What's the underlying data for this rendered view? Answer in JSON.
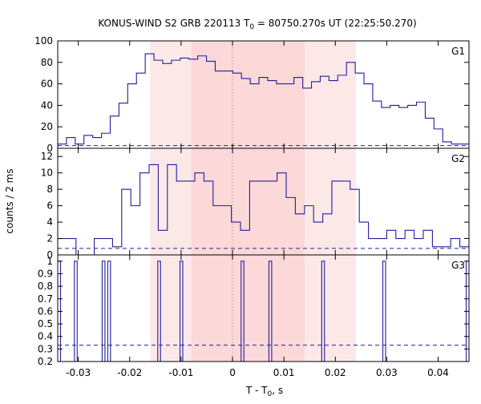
{
  "chart_data": {
    "type": "line",
    "style": "histogram-step",
    "title": "KONUS-WIND S2 GRB 220113 T",
    "title_sub": "0",
    "title_rest": " = 80750.270s UT (22:25:50.270)",
    "xlabel": "T - T",
    "xlabel_sub": "0",
    "xlabel_rest": ", s",
    "ylabel": "counts / 2 ms",
    "xlim": [
      -0.034,
      0.046
    ],
    "xticks": [
      -0.03,
      -0.02,
      -0.01,
      0,
      0.01,
      0.02,
      0.03,
      0.04
    ],
    "xtick_labels": [
      "-0.03",
      "-0.02",
      "-0.01",
      "0",
      "0.01",
      "0.02",
      "0.03",
      "0.04"
    ],
    "bin_width": 0.002,
    "bin_start": -0.034,
    "zero_line": 0,
    "shaded_regions": [
      {
        "from": -0.016,
        "to": 0.024,
        "color": "#fde8e8"
      },
      {
        "from": -0.008,
        "to": 0.014,
        "color": "#fcd8d8"
      }
    ],
    "series_color": "#1f1f9e",
    "panels": [
      {
        "name": "G1",
        "ylim": [
          0,
          100
        ],
        "yticks": [
          0,
          20,
          40,
          60,
          80,
          100
        ],
        "background": 2.5,
        "values": [
          4,
          10,
          4,
          12,
          10,
          14,
          30,
          42,
          60,
          70,
          88,
          82,
          79,
          82,
          84,
          83,
          86,
          81,
          72,
          72,
          70,
          65,
          60,
          66,
          63,
          60,
          60,
          66,
          56,
          62,
          67,
          63,
          68,
          80,
          70,
          60,
          44,
          38,
          40,
          38,
          40,
          43,
          28,
          18,
          6,
          4,
          4
        ]
      },
      {
        "name": "G2",
        "ylim": [
          0,
          13
        ],
        "yticks": [
          0,
          2,
          4,
          6,
          8,
          10,
          12
        ],
        "background": 0.8,
        "values": [
          2,
          2,
          0,
          0,
          2,
          2,
          1,
          8,
          6,
          10,
          11,
          3,
          11,
          9,
          9,
          10,
          9,
          6,
          6,
          4,
          3,
          9,
          9,
          9,
          10,
          7,
          5,
          6,
          4,
          5,
          9,
          9,
          8,
          4,
          2,
          2,
          3,
          2,
          3,
          2,
          3,
          1,
          1,
          2,
          1
        ]
      },
      {
        "name": "G3",
        "ylim": [
          0.2,
          1.05
        ],
        "yticks": [
          0.2,
          0.3,
          0.4,
          0.5,
          0.6,
          0.7,
          0.8,
          0.9,
          1
        ],
        "ytick_labels": [
          "0.2",
          "0.3",
          "0.4",
          "0.5",
          "0.6",
          "0.7",
          "0.8",
          "0.9",
          "1"
        ],
        "background": 0.33,
        "values": [
          1,
          0,
          0,
          0,
          0,
          0,
          1,
          0,
          0,
          0,
          0,
          0,
          0,
          0,
          0,
          0,
          1,
          0,
          1,
          0,
          0,
          0,
          0,
          0,
          0,
          0,
          0,
          0,
          0,
          0,
          0,
          0,
          0,
          0,
          0,
          0,
          1,
          0,
          0,
          0,
          0,
          0,
          0,
          0,
          1,
          0,
          0,
          0,
          0,
          0,
          0,
          0,
          0,
          0,
          0,
          0,
          0,
          0,
          0,
          0,
          0,
          0,
          0,
          0,
          0,
          0,
          1,
          0,
          0,
          0,
          0,
          0,
          0,
          0,
          0,
          0,
          1,
          0,
          0,
          0,
          0,
          0,
          0,
          0,
          0,
          0,
          0,
          0,
          0,
          0,
          0,
          0,
          0,
          0,
          0,
          1,
          0,
          0,
          0,
          0,
          0,
          0,
          0,
          0,
          0,
          0,
          0,
          0,
          0,
          0,
          0,
          0,
          0,
          0,
          0,
          0,
          0,
          1,
          0,
          0,
          0,
          0,
          0,
          0,
          0,
          0,
          0,
          0,
          0,
          0,
          0,
          0,
          0,
          0,
          0,
          0,
          0,
          0,
          0,
          0,
          0,
          0,
          0,
          0,
          0,
          0,
          0,
          1
        ]
      }
    ]
  }
}
